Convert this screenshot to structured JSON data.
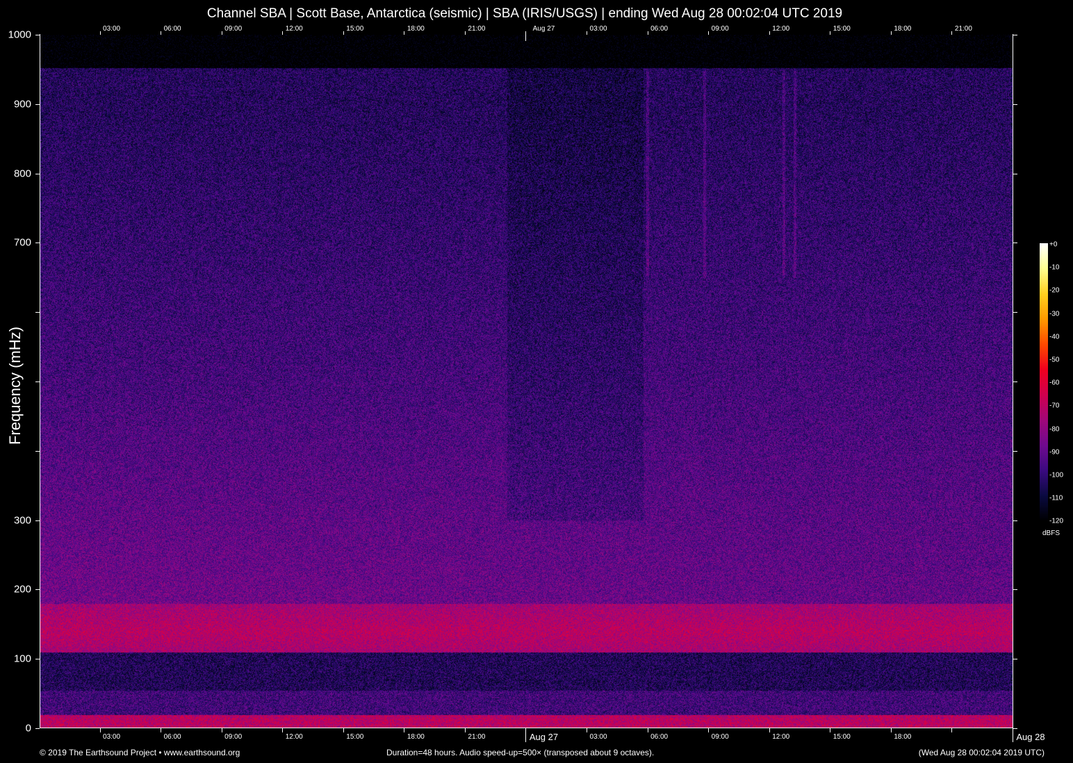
{
  "title": "Channel SBA | Scott Base, Antarctica (seismic) | SBA (IRIS/USGS) | ending Wed Aug 28 00:02:04 UTC 2019",
  "chart_data": {
    "type": "heatmap",
    "ylabel": "Frequency (mHz)",
    "ylim": [
      0,
      1000
    ],
    "y_ticks": [
      0,
      100,
      200,
      300,
      400,
      500,
      600,
      700,
      800,
      900,
      1000
    ],
    "y_tick_labels": [
      "0",
      "100",
      "200",
      "300",
      "",
      "",
      "",
      "700",
      "800",
      "900",
      "1000"
    ],
    "duration_hours": 48,
    "x_start": "2019-08-26 00:02:04 UTC",
    "x_end": "2019-08-28 00:02:04 UTC",
    "x_tick_labels_top": [
      "03:00",
      "06:00",
      "09:00",
      "12:00",
      "15:00",
      "18:00",
      "21:00",
      "Aug 27",
      "03:00",
      "06:00",
      "09:00",
      "12:00",
      "15:00",
      "18:00",
      "21:00"
    ],
    "x_tick_labels_bottom": [
      "03:00",
      "06:00",
      "09:00",
      "12:00",
      "15:00",
      "18:00",
      "21:00",
      "Aug 27",
      "03:00",
      "06:00",
      "09:00",
      "12:00",
      "15:00",
      "18:00",
      "",
      "Aug 28"
    ],
    "colorbar": {
      "unit": "dBFS",
      "range": [
        -120,
        0
      ],
      "tick_labels": [
        "+0",
        "-10",
        "-20",
        "-30",
        "-40",
        "-50",
        "-60",
        "-70",
        "-80",
        "-90",
        "-100",
        "-110",
        "-120"
      ],
      "colormap": [
        "#000000",
        "#0a0a40",
        "#3a0a80",
        "#700a90",
        "#a0087a",
        "#d00050",
        "#f00020",
        "#ff4a00",
        "#ff9a00",
        "#ffd020",
        "#ffff90",
        "#ffffff"
      ]
    },
    "features": [
      {
        "desc": "strong band",
        "freq_mhz": [
          110,
          180
        ],
        "level_dbfs": -65
      },
      {
        "desc": "quiet band",
        "freq_mhz": [
          60,
          110
        ],
        "level_dbfs": -100
      },
      {
        "desc": "strong low band",
        "freq_mhz": [
          0,
          20
        ],
        "level_dbfs": -55
      },
      {
        "desc": "vertical streaks",
        "times": [
          "Aug 27 06:00",
          "Aug 27 08:50",
          "Aug 27 12:40",
          "Aug 27 13:15"
        ]
      }
    ]
  },
  "footer": {
    "copyright": "© 2019 The Earthsound Project • www.earthsound.org",
    "info": "Duration=48 hours. Audio speed-up=500× (transposed about 9 octaves).",
    "timestamp": "(Wed Aug 28 00:02:04 2019 UTC)"
  }
}
